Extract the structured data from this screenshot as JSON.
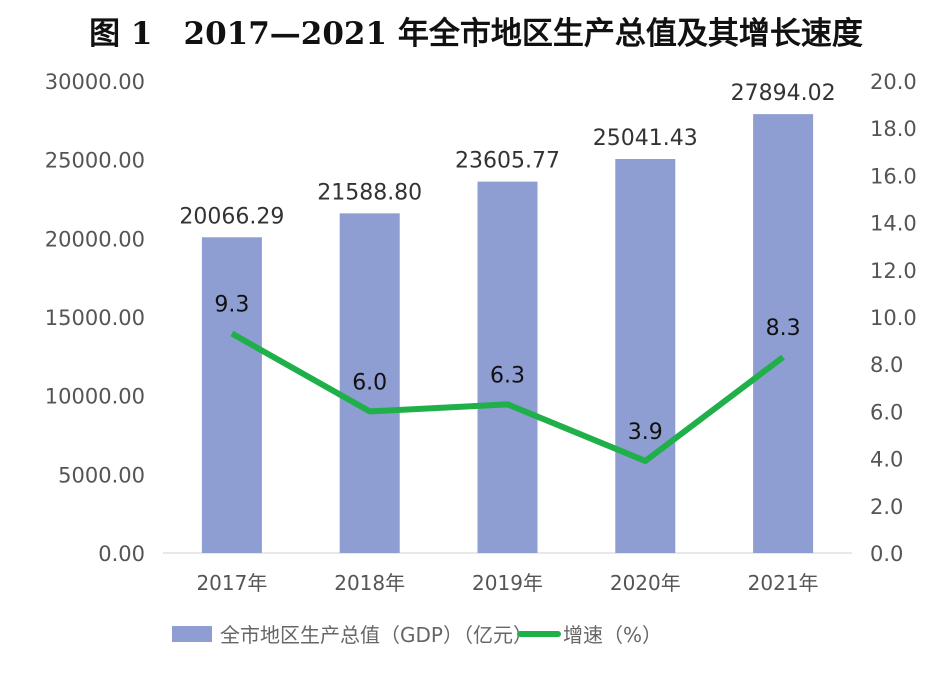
{
  "chart_data": {
    "type": "bar+line",
    "title": "图 1　2017—2021 年全市地区生产总值及其增长速度",
    "categories": [
      "2017年",
      "2018年",
      "2019年",
      "2020年",
      "2021年"
    ],
    "series": [
      {
        "name": "全市地区生产总值（GDP）（亿元）",
        "type": "bar",
        "axis": "left",
        "color": "#8e9dd2",
        "values": [
          20066.29,
          21588.8,
          23605.77,
          25041.43,
          27894.02
        ],
        "labels": [
          "20066.29",
          "21588.80",
          "23605.77",
          "25041.43",
          "27894.02"
        ]
      },
      {
        "name": "增速（%）",
        "type": "line",
        "axis": "right",
        "color": "#1fb04a",
        "values": [
          9.3,
          6.0,
          6.3,
          3.9,
          8.3
        ],
        "labels": [
          "9.3",
          "6.0",
          "6.3",
          "3.9",
          "8.3"
        ]
      }
    ],
    "left_axis": {
      "range": [
        0,
        30000
      ],
      "ticks": [
        "0.00",
        "5000.00",
        "10000.00",
        "15000.00",
        "20000.00",
        "25000.00",
        "30000.00"
      ]
    },
    "right_axis": {
      "range": [
        0,
        20
      ],
      "ticks": [
        "0.0",
        "2.0",
        "4.0",
        "6.0",
        "8.0",
        "10.0",
        "12.0",
        "14.0",
        "16.0",
        "18.0",
        "20.0"
      ]
    },
    "grid": false,
    "legend_position": "bottom"
  }
}
